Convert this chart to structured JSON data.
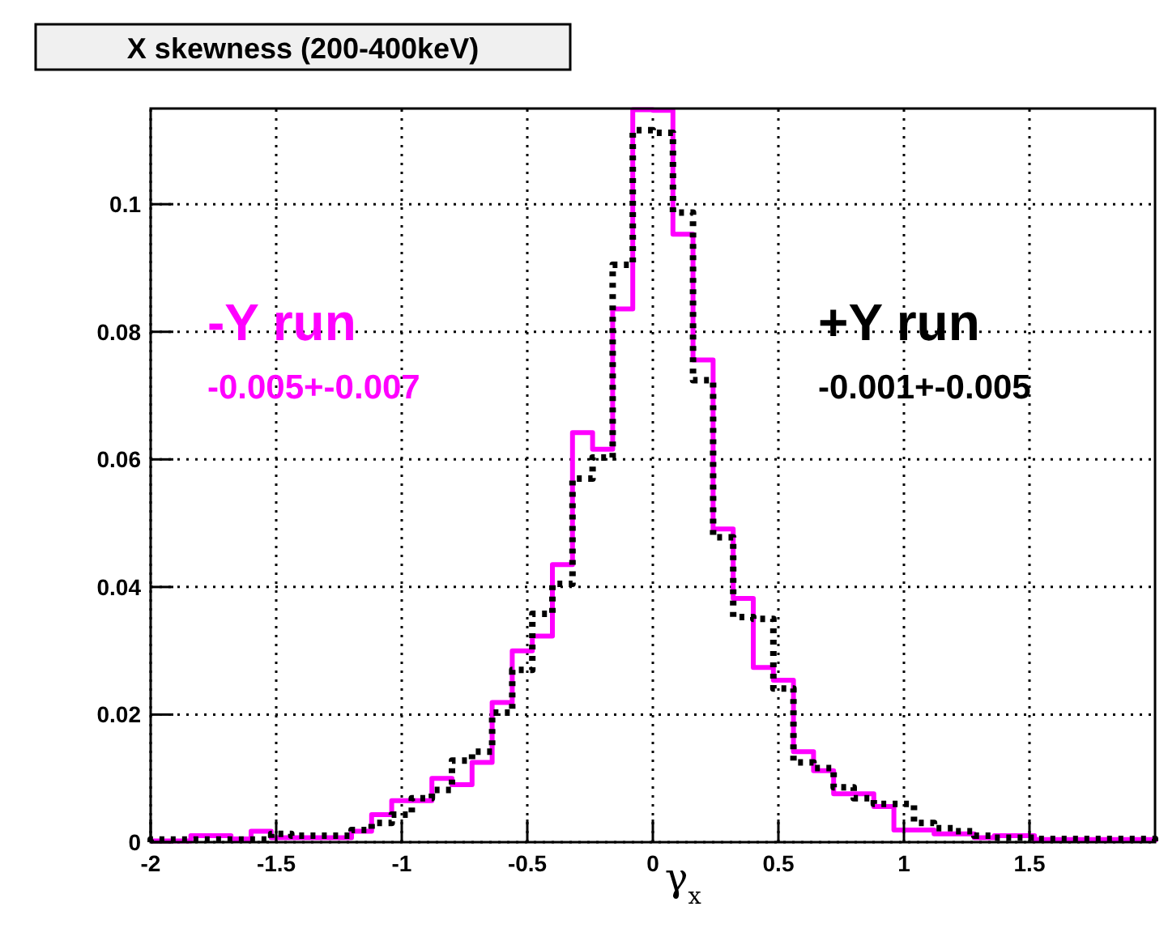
{
  "chart_data": {
    "type": "histogram",
    "title": "X skewness (200-400keV)",
    "xlabel": "γ$_{x}$",
    "bins": [
      -2,
      -1.92,
      -1.84,
      -1.76,
      -1.68,
      -1.6,
      -1.52,
      -1.44,
      -1.36,
      -1.28,
      -1.2,
      -1.12,
      -1.04,
      -0.96,
      -0.88,
      -0.8,
      -0.72,
      -0.64,
      -0.56,
      -0.48,
      -0.4,
      -0.32,
      -0.24,
      -0.16,
      -0.08,
      0,
      0.08,
      0.16,
      0.24,
      0.32,
      0.4,
      0.48,
      0.56,
      0.64,
      0.72,
      0.8,
      0.88,
      0.96,
      1.04,
      1.12,
      1.2,
      1.28,
      1.36,
      1.44,
      1.52,
      1.6,
      1.68,
      1.76,
      1.84,
      1.92,
      2
    ],
    "series": [
      {
        "name": "-Y run",
        "color": "#ff00ff",
        "line_style": "solid",
        "values": [
          0.0002,
          0.0002,
          0.001,
          0.001,
          0.0005,
          0.0017,
          0.0007,
          0.0007,
          0.0007,
          0.0007,
          0.0017,
          0.0043,
          0.0065,
          0.0065,
          0.01,
          0.009,
          0.0125,
          0.0219,
          0.03,
          0.0323,
          0.0435,
          0.0642,
          0.0616,
          0.0836,
          0.1148,
          0.1147,
          0.0953,
          0.0756,
          0.0491,
          0.0382,
          0.0274,
          0.0254,
          0.0142,
          0.0112,
          0.0076,
          0.0076,
          0.0056,
          0.0019,
          0.0019,
          0.0013,
          0.0013,
          0.0007,
          0.001,
          0.001,
          0.0004,
          0.0004,
          0.0004,
          0.0004,
          0.0004,
          0.0004
        ]
      },
      {
        "name": "+Y run",
        "color": "#000000",
        "line_style": "dotted",
        "values": [
          0.0004,
          0.0004,
          0.0004,
          0.0004,
          0.0004,
          0.0004,
          0.0013,
          0.001,
          0.001,
          0.001,
          0.0019,
          0.003,
          0.0043,
          0.0069,
          0.0082,
          0.0128,
          0.0142,
          0.0203,
          0.027,
          0.0358,
          0.0405,
          0.057,
          0.0603,
          0.0905,
          0.1116,
          0.1112,
          0.0987,
          0.0724,
          0.0478,
          0.0353,
          0.035,
          0.0241,
          0.0125,
          0.0116,
          0.0086,
          0.0069,
          0.006,
          0.006,
          0.003,
          0.0022,
          0.0017,
          0.001,
          0.0007,
          0.0007,
          0.0005,
          0.0005,
          0.0005,
          0.0005,
          0.0005,
          0.0005
        ]
      }
    ],
    "annotations": [
      "-0.005+-0.007",
      "-0.001+-0.005"
    ],
    "xlim": [
      -2,
      2
    ],
    "xticks": [
      -2,
      -1.5,
      -1,
      -0.5,
      0,
      0.5,
      1,
      1.5
    ],
    "ylim": [
      0,
      0.115
    ],
    "yticks": [
      0,
      0.02,
      0.04,
      0.06,
      0.08,
      0.1
    ],
    "grid": true
  }
}
